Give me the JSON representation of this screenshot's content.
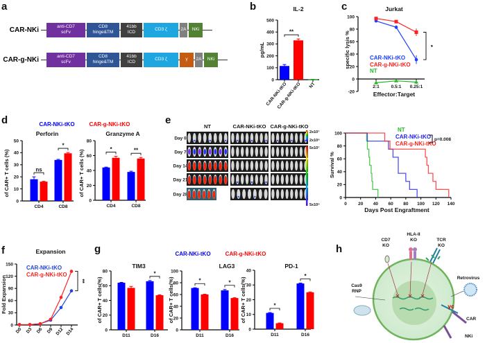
{
  "panel_labels": [
    "a",
    "b",
    "c",
    "d",
    "e",
    "f",
    "g",
    "h"
  ],
  "constructs": [
    {
      "name": "CAR-NKi",
      "segments": [
        {
          "key": "scfv",
          "label": "anti-CD7\nscFv",
          "color": "#7030a0"
        },
        {
          "key": "cd8",
          "label": "CD8\nhinge&TM",
          "color": "#2f5597"
        },
        {
          "key": "41bb",
          "label": "41bb\nICD",
          "color": "#404040"
        },
        {
          "key": "cd3",
          "label": "CD3 ζ",
          "color": "#1ea6e0"
        },
        {
          "key": "2a",
          "label": "2A",
          "color": "#808080"
        },
        {
          "key": "nki",
          "label": "NKi",
          "color": "#548235"
        }
      ]
    },
    {
      "name": "CAR-g-NKi",
      "segments": [
        {
          "key": "scfv",
          "label": "anti-CD7\nscFv",
          "color": "#7030a0"
        },
        {
          "key": "cd8",
          "label": "CD8\nhinge&TM",
          "color": "#2f5597"
        },
        {
          "key": "41bb",
          "label": "41bb\nICD",
          "color": "#404040"
        },
        {
          "key": "cd3",
          "label": "CD3 ζ",
          "color": "#1ea6e0"
        },
        {
          "key": "gamma",
          "label": "γ",
          "color": "#c55a11"
        },
        {
          "key": "2a",
          "label": "2A",
          "color": "#808080"
        },
        {
          "key": "nki",
          "label": "NKi",
          "color": "#548235"
        }
      ]
    }
  ],
  "bli": {
    "columns": [
      "NT",
      "CAR-NKi-tKO",
      "CAR-g-NKi-tKO"
    ],
    "rows": [
      "Day 0",
      "Day 7",
      "Day 14",
      "Day 21",
      "Day 28"
    ],
    "signal": [
      [
        1,
        1,
        1
      ],
      [
        2,
        0,
        0
      ],
      [
        3,
        0,
        0
      ],
      [
        3,
        1,
        0
      ],
      [
        4,
        1,
        0
      ]
    ],
    "mice": [
      [
        8,
        8,
        8
      ],
      [
        8,
        8,
        8
      ],
      [
        8,
        8,
        8
      ],
      [
        8,
        8,
        8
      ],
      [
        6,
        7,
        8
      ]
    ],
    "scale_top": [
      "2x10⁷",
      "2x10⁶"
    ],
    "scale_bottom": [
      "5x10⁷",
      "5x10⁶"
    ]
  },
  "diagram": {
    "cd7_ko": [
      "CD7",
      "KO"
    ],
    "hla_ko": [
      "HLA-II",
      "KO"
    ],
    "tcr_ko": [
      "TCR",
      "KO"
    ],
    "retrovirus": "Retrovirus",
    "cas9": [
      "Cas9",
      "RNP"
    ],
    "gamma_c": "γc",
    "car": "CAR",
    "nki": "NKi"
  },
  "chart_data": [
    {
      "panel": "b",
      "type": "bar",
      "title": "IL-2",
      "ylabel": "pg/mL",
      "xlabel": "",
      "ylim": [
        0,
        500
      ],
      "yticks": [
        0,
        100,
        200,
        300,
        400,
        500
      ],
      "categories": [
        "CAR-NKi-tKO",
        "CAR-g-NKi-tKO",
        "NT"
      ],
      "values": [
        115,
        330,
        2
      ],
      "errors": [
        12,
        12,
        1
      ],
      "bar_colors": [
        "#0000ff",
        "#ff0000",
        "#00aa00"
      ],
      "significance": [
        {
          "bars": [
            0,
            1
          ],
          "label": "**"
        }
      ]
    },
    {
      "panel": "c",
      "type": "line",
      "title": "Jurkat",
      "ylabel": "specific lysis %",
      "xlabel": "Effector:Target",
      "ylim": [
        -20,
        100
      ],
      "yticks": [
        -20,
        0,
        20,
        40,
        60,
        80,
        100
      ],
      "categories": [
        "2:1",
        "0.5:1",
        "0.25:1"
      ],
      "series": [
        {
          "name": "CAR-NKi-tKO",
          "values": [
            93,
            83,
            31
          ],
          "errors": [
            2,
            3,
            7
          ],
          "color": "#1f3fff",
          "marker": "circle"
        },
        {
          "name": "CAR-g-NKi-tKO",
          "values": [
            97,
            92,
            75
          ],
          "errors": [
            2,
            1,
            6
          ],
          "color": "#ff2020",
          "marker": "square"
        },
        {
          "name": "NT",
          "values": [
            -6,
            -3,
            -5
          ],
          "errors": [
            3,
            1,
            3
          ],
          "color": "#22bb22",
          "marker": "triangle"
        }
      ],
      "significance": [
        {
          "category": 2,
          "series": [
            0,
            1
          ],
          "label": "*"
        }
      ],
      "legend": "center-left"
    },
    {
      "panel": "d",
      "type": "bar",
      "title": "Perforin",
      "ylabel": "of CAR+ T cells (%)",
      "xlabel": "",
      "ylim": [
        0,
        50
      ],
      "yticks": [
        0,
        10,
        20,
        30,
        40,
        50
      ],
      "categories": [
        "CD4",
        "CD8"
      ],
      "series": [
        {
          "name": "CAR-NKi-tKO",
          "values": [
            18,
            34
          ],
          "errors": [
            2,
            0.5
          ],
          "color": "#0000ff"
        },
        {
          "name": "CAR-g-NKi-tKO",
          "values": [
            16,
            39.5
          ],
          "errors": [
            0.3,
            0.7
          ],
          "color": "#ff0000"
        }
      ],
      "significance": [
        {
          "category": 0,
          "label": "ns"
        },
        {
          "category": 1,
          "label": "*"
        }
      ],
      "legend": "top"
    },
    {
      "panel": "d",
      "type": "bar",
      "title": "Granzyme A",
      "ylabel": "of CAR+ T cells (%)",
      "xlabel": "",
      "ylim": [
        0,
        80
      ],
      "yticks": [
        0,
        20,
        40,
        60,
        80
      ],
      "categories": [
        "CD4",
        "CD8"
      ],
      "series": [
        {
          "name": "CAR-NKi-tKO",
          "values": [
            44,
            38
          ],
          "errors": [
            0.5,
            1
          ],
          "color": "#0000ff"
        },
        {
          "name": "CAR-g-NKi-tKO",
          "values": [
            57,
            56
          ],
          "errors": [
            2,
            1.5
          ],
          "color": "#ff0000"
        }
      ],
      "significance": [
        {
          "category": 0,
          "label": "*"
        },
        {
          "category": 1,
          "label": "**"
        }
      ]
    },
    {
      "panel": "e",
      "type": "line",
      "subtype": "kaplan-meier",
      "ylabel": "Survival %",
      "xlabel": "Days Post Engraftment",
      "xlim": [
        0,
        140
      ],
      "xticks": [
        0,
        20,
        40,
        60,
        80,
        100,
        120,
        140
      ],
      "ylim": [
        0,
        100
      ],
      "yticks": [
        0,
        20,
        40,
        60,
        80,
        100
      ],
      "series": [
        {
          "name": "NT",
          "color": "#22bb22",
          "steps": [
            [
              0,
              100
            ],
            [
              28,
              87.5
            ],
            [
              29,
              75
            ],
            [
              31,
              62.5
            ],
            [
              32,
              50
            ],
            [
              34,
              37.5
            ],
            [
              35,
              25
            ],
            [
              36,
              12.5
            ],
            [
              43,
              0
            ]
          ]
        },
        {
          "name": "CAR-NKi-tKO",
          "color": "#2222ee",
          "steps": [
            [
              0,
              100
            ],
            [
              29,
              87.5
            ],
            [
              57,
              75
            ],
            [
              63,
              62.5
            ],
            [
              70,
              37.5
            ],
            [
              80,
              25
            ],
            [
              85,
              12.5
            ],
            [
              95,
              0
            ]
          ]
        },
        {
          "name": "CAR-g-NKi-tKO",
          "color": "#ff2222",
          "steps": [
            [
              0,
              100
            ],
            [
              52,
              87.5
            ],
            [
              59,
              75
            ],
            [
              106,
              62.5
            ],
            [
              108,
              50
            ],
            [
              110,
              37.5
            ],
            [
              116,
              25
            ],
            [
              120,
              12.5
            ],
            [
              137,
              0
            ]
          ]
        }
      ],
      "annotation": "p=0.008",
      "legend": "top-right"
    },
    {
      "panel": "f",
      "type": "line",
      "title": "Expansion",
      "ylabel": "Fold Expansion",
      "xlabel": "",
      "ylim": [
        0,
        150
      ],
      "yticks": [
        0,
        30,
        60,
        90,
        120,
        150
      ],
      "categories": [
        "D0",
        "D3",
        "D6",
        "D9",
        "D12",
        "D14"
      ],
      "series": [
        {
          "name": "CAR-NKi-tKO",
          "values": [
            1,
            1,
            3,
            12,
            43,
            84
          ],
          "errors": [
            0.5,
            0.5,
            0.5,
            1,
            1,
            2
          ],
          "color": "#2244dd",
          "marker": "circle"
        },
        {
          "name": "CAR-g-NKi-tKO",
          "values": [
            1,
            1,
            3,
            14,
            68,
            132
          ],
          "errors": [
            0.5,
            0.5,
            0.5,
            1,
            2,
            4
          ],
          "color": "#ff2222",
          "marker": "circle"
        }
      ],
      "significance": [
        {
          "category": 5,
          "series": [
            0,
            1
          ],
          "label": "**"
        }
      ],
      "legend": "top-left"
    },
    {
      "panel": "g",
      "type": "bar",
      "title": "TIM3",
      "ylabel": "of CAR+ T cells(%)",
      "xlabel": "",
      "ylim": [
        0,
        80
      ],
      "yticks": [
        0,
        20,
        40,
        60,
        80
      ],
      "categories": [
        "D11",
        "D16"
      ],
      "series": [
        {
          "name": "CAR-NKi-tKO",
          "values": [
            64,
            66
          ],
          "errors": [
            0.5,
            1
          ],
          "color": "#0000ff"
        },
        {
          "name": "CAR-g-NKi-tKO",
          "values": [
            57,
            47
          ],
          "errors": [
            2,
            0.5
          ],
          "color": "#ff0000"
        }
      ],
      "significance": [
        {
          "category": 1,
          "label": "*"
        }
      ],
      "legend": "top"
    },
    {
      "panel": "g",
      "type": "bar",
      "title": "LAG3",
      "ylabel": "of CAR+ T cells(%)",
      "xlabel": "",
      "ylim": [
        0,
        100
      ],
      "yticks": [
        0,
        20,
        40,
        60,
        80,
        100
      ],
      "categories": [
        "D11",
        "D16"
      ],
      "series": [
        {
          "name": "CAR-NKi-tKO",
          "values": [
            71,
            67
          ],
          "errors": [
            0.5,
            1.5
          ],
          "color": "#0000ff"
        },
        {
          "name": "CAR-g-NKi-tKO",
          "values": [
            60,
            54
          ],
          "errors": [
            0.5,
            0.5
          ],
          "color": "#ff0000"
        }
      ],
      "significance": [
        {
          "category": 0,
          "label": "*"
        },
        {
          "category": 1,
          "label": "*"
        }
      ]
    },
    {
      "panel": "g",
      "type": "bar",
      "title": "PD-1",
      "ylabel": "of CAR+ T cells(%)",
      "xlabel": "",
      "ylim": [
        0,
        40
      ],
      "yticks": [
        0,
        10,
        20,
        30,
        40
      ],
      "categories": [
        "D11",
        "D16"
      ],
      "series": [
        {
          "name": "CAR-NKi-tKO",
          "values": [
            11,
            31
          ],
          "errors": [
            0.3,
            0.3
          ],
          "color": "#0000ff"
        },
        {
          "name": "CAR-g-NKi-tKO",
          "values": [
            4,
            25
          ],
          "errors": [
            0.2,
            0.3
          ],
          "color": "#ff0000"
        }
      ],
      "significance": [
        {
          "category": 0,
          "label": "*"
        },
        {
          "category": 1,
          "label": "*"
        }
      ]
    }
  ]
}
